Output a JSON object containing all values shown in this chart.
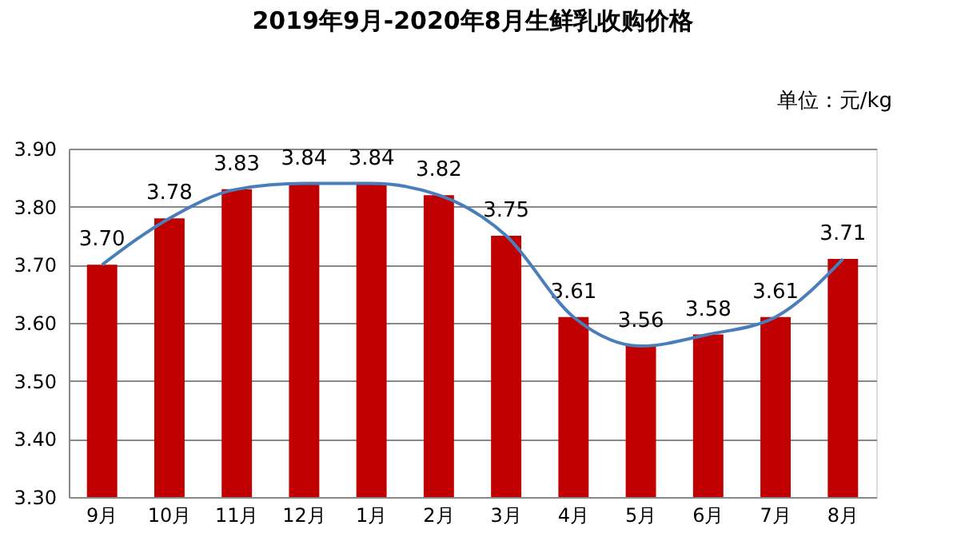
{
  "chart_data": {
    "type": "bar",
    "title": "2019年9月-2020年8月生鲜乳收购价格",
    "annotations": [
      "单位：元/kg"
    ],
    "categories": [
      "9月",
      "10月",
      "11月",
      "12月",
      "1月",
      "2月",
      "3月",
      "4月",
      "5月",
      "6月",
      "7月",
      "8月"
    ],
    "series": [
      {
        "color": "#c00000",
        "values": [
          3.7,
          3.78,
          3.83,
          3.84,
          3.84,
          3.82,
          3.75,
          3.61,
          3.56,
          3.58,
          3.61,
          3.71
        ],
        "value_labels": [
          "3.70",
          "3.78",
          "3.83",
          "3.84",
          "3.84",
          "3.82",
          "3.75",
          "3.61",
          "3.56",
          "3.58",
          "3.61",
          "3.71"
        ]
      },
      {
        "type": "line",
        "color": "#4a7ebb",
        "values": [
          3.7,
          3.78,
          3.83,
          3.84,
          3.84,
          3.82,
          3.75,
          3.61,
          3.56,
          3.58,
          3.61,
          3.71
        ]
      }
    ],
    "ylim": [
      3.3,
      3.9
    ],
    "yticks": [
      {
        "value": 3.3,
        "label": "3.30"
      },
      {
        "value": 3.4,
        "label": "3.40"
      },
      {
        "value": 3.5,
        "label": "3.50"
      },
      {
        "value": 3.6,
        "label": "3.60"
      },
      {
        "value": 3.7,
        "label": "3.70"
      },
      {
        "value": 3.8,
        "label": "3.80"
      },
      {
        "value": 3.9,
        "label": "3.90"
      }
    ],
    "grid": "y"
  }
}
